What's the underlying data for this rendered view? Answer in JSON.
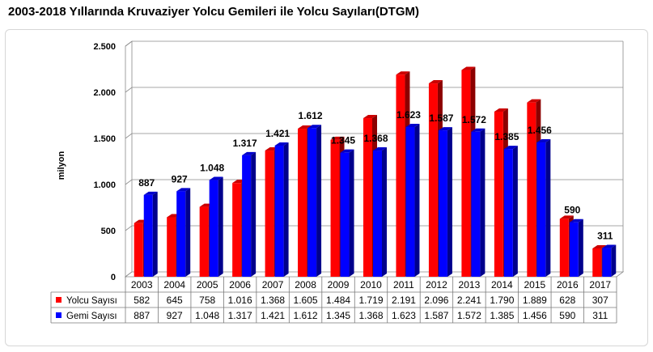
{
  "title": "2003-2018 Yıllarında Kruvaziyer Yolcu Gemileri ile Yolcu Sayıları(DTGM)",
  "chart_data": {
    "type": "bar",
    "title": "2003-2018 Yıllarında Kruvaziyer Yolcu Gemileri ile Yolcu Sayıları(DTGM)",
    "xlabel": "",
    "ylabel": "milyon",
    "ylim": [
      0,
      2500
    ],
    "yticks": [
      0,
      500,
      1000,
      1500,
      2000,
      2500
    ],
    "ytick_labels": [
      "0",
      "500",
      "1.000",
      "1.500",
      "2.000",
      "2.500"
    ],
    "grid": true,
    "legend": "data-table-left",
    "categories": [
      "2003",
      "2004",
      "2005",
      "2006",
      "2007",
      "2008",
      "2009",
      "2010",
      "2011",
      "2012",
      "2013",
      "2014",
      "2015",
      "2016",
      "2017"
    ],
    "series": [
      {
        "name": "Yolcu Sayısı",
        "color": "#ff0000",
        "values": [
          582,
          645,
          758,
          1016,
          1368,
          1605,
          1484,
          1719,
          2191,
          2096,
          2241,
          1790,
          1889,
          628,
          307
        ],
        "value_labels": [
          "582",
          "645",
          "758",
          "1.016",
          "1.368",
          "1.605",
          "1.484",
          "1.719",
          "2.191",
          "2.096",
          "2.241",
          "1.790",
          "1.889",
          "628",
          "307"
        ]
      },
      {
        "name": "Gemi Sayısı",
        "color": "#0000ff",
        "values": [
          887,
          927,
          1048,
          1317,
          1421,
          1612,
          1345,
          1368,
          1623,
          1587,
          1572,
          1385,
          1456,
          590,
          311
        ],
        "value_labels": [
          "887",
          "927",
          "1.048",
          "1.317",
          "1.421",
          "1.612",
          "1.345",
          "1.368",
          "1.623",
          "1.587",
          "1.572",
          "1.385",
          "1.456",
          "590",
          "311"
        ]
      }
    ]
  }
}
